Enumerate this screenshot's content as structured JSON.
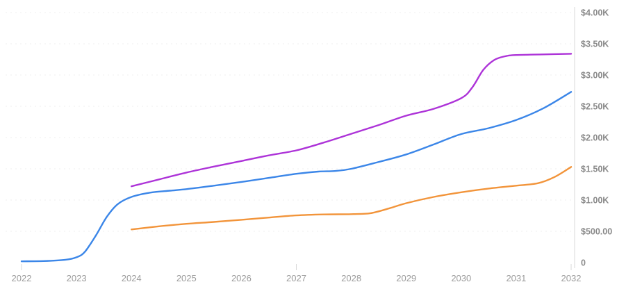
{
  "chart_data": {
    "type": "line",
    "title": "",
    "legend": "none",
    "background": "#ffffff",
    "x_axis": {
      "range": [
        2022,
        2032
      ],
      "tick_labels": [
        "2022",
        "2023",
        "2024",
        "2025",
        "2026",
        "2027",
        "2028",
        "2029",
        "2030",
        "2031",
        "2032"
      ],
      "tick_values": [
        2022,
        2023,
        2024,
        2025,
        2026,
        2027,
        2028,
        2029,
        2030,
        2031,
        2032
      ],
      "tick_marks_at": [
        2022,
        2027,
        2032
      ],
      "label_color": "#9b9b9b"
    },
    "y_axis": {
      "position": "right",
      "range": [
        0,
        4000
      ],
      "tick_labels": [
        "$4.00K",
        "$3.50K",
        "$3.00K",
        "$2.50K",
        "$2.00K",
        "$1.50K",
        "$1.00K",
        "$500.00",
        "0"
      ],
      "tick_values": [
        4000,
        3500,
        3000,
        2500,
        2000,
        1500,
        1000,
        500,
        0
      ],
      "axis_line_color": "#e6e6e6",
      "label_color": "#8a8a8a"
    },
    "gridlines": {
      "show": true,
      "style": "dotted",
      "color": "#efefef",
      "at_values": [
        500,
        1000,
        1500,
        2000,
        2500,
        3000,
        3500,
        4000
      ]
    },
    "tick_mark_color": "#d9d9d9",
    "series": [
      {
        "name": "blue-series",
        "color": "#3b86e8",
        "points": [
          [
            2022.0,
            20
          ],
          [
            2022.4,
            25
          ],
          [
            2022.8,
            45
          ],
          [
            2023.0,
            85
          ],
          [
            2023.15,
            170
          ],
          [
            2023.35,
            430
          ],
          [
            2023.55,
            730
          ],
          [
            2023.75,
            935
          ],
          [
            2024.0,
            1050
          ],
          [
            2024.35,
            1120
          ],
          [
            2024.7,
            1150
          ],
          [
            2025.0,
            1175
          ],
          [
            2025.5,
            1230
          ],
          [
            2026.0,
            1290
          ],
          [
            2026.5,
            1355
          ],
          [
            2027.0,
            1420
          ],
          [
            2027.4,
            1455
          ],
          [
            2027.7,
            1465
          ],
          [
            2028.0,
            1500
          ],
          [
            2028.5,
            1610
          ],
          [
            2029.0,
            1730
          ],
          [
            2029.5,
            1890
          ],
          [
            2030.0,
            2055
          ],
          [
            2030.5,
            2150
          ],
          [
            2031.0,
            2280
          ],
          [
            2031.5,
            2470
          ],
          [
            2032.0,
            2730
          ]
        ]
      },
      {
        "name": "orange-series",
        "color": "#f2943a",
        "points": [
          [
            2024.0,
            530
          ],
          [
            2024.5,
            580
          ],
          [
            2025.0,
            620
          ],
          [
            2025.5,
            650
          ],
          [
            2026.0,
            685
          ],
          [
            2026.5,
            720
          ],
          [
            2027.0,
            755
          ],
          [
            2027.5,
            770
          ],
          [
            2028.0,
            775
          ],
          [
            2028.35,
            790
          ],
          [
            2028.7,
            870
          ],
          [
            2029.0,
            950
          ],
          [
            2029.5,
            1050
          ],
          [
            2030.0,
            1125
          ],
          [
            2030.5,
            1185
          ],
          [
            2031.0,
            1230
          ],
          [
            2031.4,
            1270
          ],
          [
            2031.7,
            1370
          ],
          [
            2032.0,
            1530
          ]
        ]
      },
      {
        "name": "purple-series",
        "color": "#ad33d8",
        "points": [
          [
            2024.0,
            1220
          ],
          [
            2024.5,
            1330
          ],
          [
            2025.0,
            1440
          ],
          [
            2025.5,
            1535
          ],
          [
            2026.0,
            1625
          ],
          [
            2026.5,
            1715
          ],
          [
            2027.0,
            1795
          ],
          [
            2027.5,
            1920
          ],
          [
            2028.0,
            2060
          ],
          [
            2028.5,
            2200
          ],
          [
            2029.0,
            2350
          ],
          [
            2029.5,
            2460
          ],
          [
            2030.0,
            2630
          ],
          [
            2030.2,
            2800
          ],
          [
            2030.4,
            3080
          ],
          [
            2030.6,
            3240
          ],
          [
            2030.8,
            3300
          ],
          [
            2031.0,
            3320
          ],
          [
            2031.5,
            3330
          ],
          [
            2032.0,
            3340
          ]
        ]
      }
    ]
  }
}
